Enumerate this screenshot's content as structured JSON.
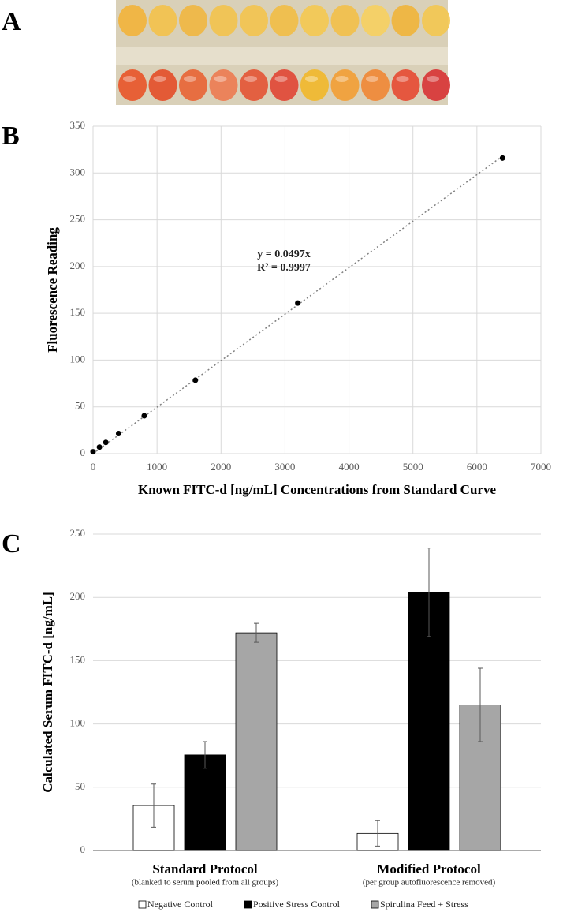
{
  "photo": {
    "panel": "A"
  },
  "chart_data": [
    {
      "type": "scatter",
      "panel": "B",
      "xlabel": "Known FITC-d [ng/mL] Concentrations from Standard Curve",
      "ylabel": "Fluorescence Reading",
      "x": [
        0,
        100,
        200,
        400,
        800,
        1600,
        3200,
        6400
      ],
      "values": [
        2,
        7,
        12,
        21.5,
        40.5,
        78.5,
        161,
        316
      ],
      "color": "#000000",
      "trendline": {
        "slope": 0.0497,
        "equation": "y = 0.0497x",
        "r_squared": "R² = 0.9997",
        "color": "#7f7f7f"
      },
      "xlim": [
        0,
        7000
      ],
      "xticks": [
        0,
        1000,
        2000,
        3000,
        4000,
        5000,
        6000,
        7000
      ],
      "ylim": [
        0,
        350
      ],
      "yticks": [
        0,
        50,
        100,
        150,
        200,
        250,
        300,
        350
      ],
      "grid": true
    },
    {
      "type": "bar",
      "panel": "C",
      "ylabel": "Calculated Serum FITC-d [ng/mL]",
      "categories": [
        "Standard Protocol",
        "Modified Protocol"
      ],
      "category_notes": [
        "(blanked to serum pooled from all groups)",
        "(per group autofluorescence removed)"
      ],
      "series": [
        {
          "name": "Negative Control",
          "color": "#ffffff",
          "values": [
            35.5,
            13.5
          ],
          "errors": [
            17,
            10
          ]
        },
        {
          "name": "Positive Stress Control",
          "color": "#000000",
          "values": [
            75.5,
            204
          ],
          "errors": [
            10.5,
            35
          ]
        },
        {
          "name": "Spirulina Feed + Stress",
          "color": "#a6a6a6",
          "values": [
            172,
            115
          ],
          "errors": [
            7.5,
            29
          ]
        }
      ],
      "ylim": [
        0,
        250
      ],
      "yticks": [
        0,
        50,
        100,
        150,
        200,
        250
      ],
      "grid": true,
      "legend": "bottom"
    }
  ]
}
